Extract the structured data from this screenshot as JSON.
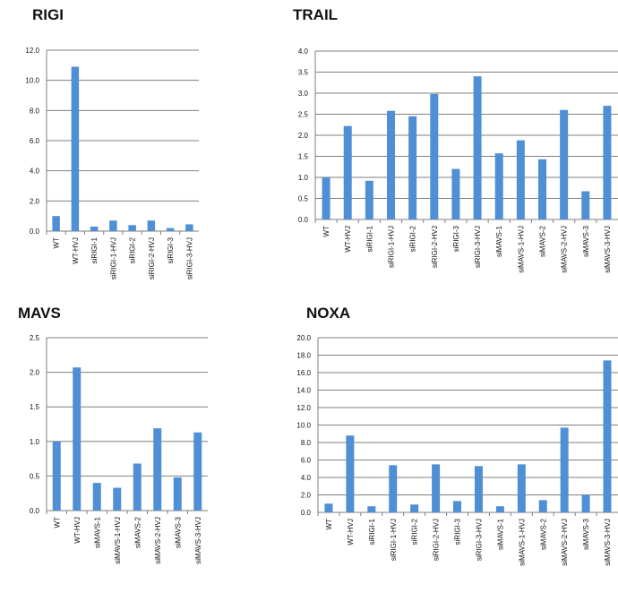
{
  "cropped_top_text": "",
  "chart_data": [
    {
      "type": "bar",
      "title": "RIGI",
      "categories": [
        "WT",
        "WT-HVJ",
        "siRIGI-1",
        "siRIGI-1-HVJ",
        "siRIGI-2",
        "siRIGI-2-HVJ",
        "siRIGI-3",
        "siRIGI-3-HVJ"
      ],
      "values": [
        1.0,
        10.9,
        0.3,
        0.7,
        0.4,
        0.7,
        0.2,
        0.45
      ],
      "ylim": [
        0,
        12
      ],
      "yticks": [
        0,
        2,
        4,
        6,
        8,
        10,
        12
      ],
      "ytick_labels": [
        "0.0",
        "2.0",
        "4.0",
        "6.0",
        "8.0",
        "10.0",
        "12.0"
      ],
      "bar_color": "#4f8fd6",
      "grid": true
    },
    {
      "type": "bar",
      "title": "TRAIL",
      "categories": [
        "WT",
        "WT-HVJ",
        "siRIGI-1",
        "siRIGI-1-HVJ",
        "siRIGI-2",
        "siRIGI-2-HVJ",
        "siRIGI-3",
        "siRIGI-3-HVJ",
        "siMAVS-1",
        "siMAVS-1-HVJ",
        "siMAVS-2",
        "siMAVS-2-HVJ",
        "siMAVS-3",
        "siMAVS-3-HVJ"
      ],
      "values": [
        1.0,
        2.22,
        0.92,
        2.58,
        2.45,
        2.98,
        1.2,
        3.4,
        1.57,
        1.88,
        1.43,
        2.6,
        0.67,
        2.7
      ],
      "ylim": [
        0,
        4
      ],
      "yticks": [
        0,
        0.5,
        1,
        1.5,
        2,
        2.5,
        3,
        3.5,
        4
      ],
      "ytick_labels": [
        "0.0",
        "0.5",
        "1.0",
        "1.5",
        "2.0",
        "2.5",
        "3.0",
        "3.5",
        "4.0"
      ],
      "bar_color": "#4f8fd6",
      "grid": true
    },
    {
      "type": "bar",
      "title": "MAVS",
      "categories": [
        "WT",
        "WT-HVJ",
        "siMAVS-1",
        "siMAVS-1-HVJ",
        "siMAVS-2",
        "siMAVS-2-HVJ",
        "siMAVS-3",
        "siMAVS-3-HVJ"
      ],
      "values": [
        1.0,
        2.07,
        0.4,
        0.33,
        0.68,
        1.19,
        0.48,
        1.13
      ],
      "ylim": [
        0,
        2.5
      ],
      "yticks": [
        0,
        0.5,
        1,
        1.5,
        2,
        2.5
      ],
      "ytick_labels": [
        "0.0",
        "0.5",
        "1.0",
        "1.5",
        "2.0",
        "2.5"
      ],
      "bar_color": "#4f8fd6",
      "grid": true
    },
    {
      "type": "bar",
      "title": "NOXA",
      "categories": [
        "WT",
        "WT-HVJ",
        "siRIGI-1",
        "siRIGI-1-HVJ",
        "siRIGI-2",
        "siRIGI-2-HVJ",
        "siRIGI-3",
        "siRIGI-3-HVJ",
        "siMAVS-1",
        "siMAVS-1-HVJ",
        "siMAVS-2",
        "siMAVS-2-HVJ",
        "siMAVS-3",
        "siMAVS-3-HVJ"
      ],
      "values": [
        1.0,
        8.8,
        0.7,
        5.4,
        0.9,
        5.5,
        1.3,
        5.3,
        0.7,
        5.5,
        1.4,
        9.7,
        2.0,
        17.4
      ],
      "ylim": [
        0,
        20
      ],
      "yticks": [
        0,
        2,
        4,
        6,
        8,
        10,
        12,
        14,
        16,
        18,
        20
      ],
      "ytick_labels": [
        "0.0",
        "2.0",
        "4.0",
        "6.0",
        "8.0",
        "10.0",
        "12.0",
        "14.0",
        "16.0",
        "18.0",
        "20.0"
      ],
      "bar_color": "#4f8fd6",
      "grid": true
    }
  ]
}
